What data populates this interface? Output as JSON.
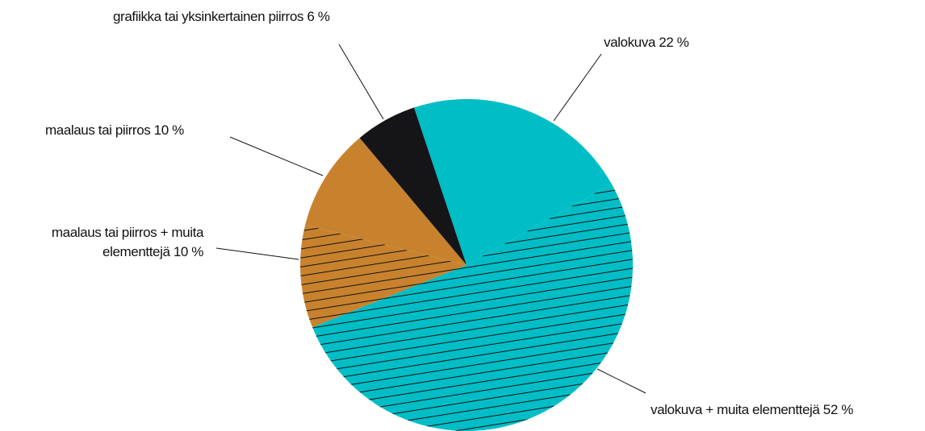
{
  "chart_data": {
    "type": "pie",
    "categories": [
      "valokuva",
      "valokuva + muita elementtejä",
      "maalaus tai piirros + muita elementtejä",
      "maalaus tai piirros",
      "grafiikka tai yksinkertainen piirros"
    ],
    "values": [
      22,
      52,
      10,
      10,
      6
    ],
    "value_labels": [
      "22 %",
      "52 %",
      "10 %",
      "10 %",
      "6 %"
    ],
    "colors": [
      "#00bdc6",
      "#00bdc6",
      "#c8822e",
      "#c8822e",
      "#151517"
    ],
    "hatched": [
      false,
      true,
      true,
      false,
      false
    ]
  }
}
